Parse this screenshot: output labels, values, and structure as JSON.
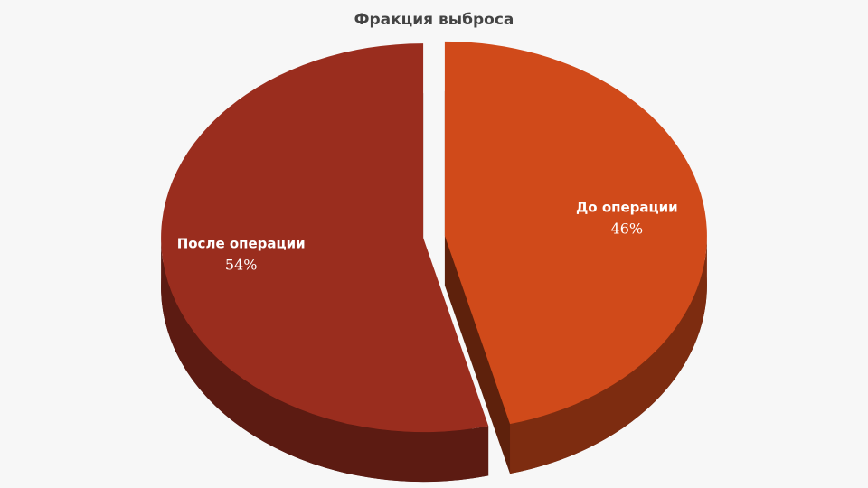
{
  "chart_data": {
    "type": "pie",
    "title": "Фракция выброса",
    "categories": [
      "До операции",
      "После операции"
    ],
    "values": [
      46,
      54
    ],
    "value_labels": [
      "46%",
      "54%"
    ],
    "colors": [
      "#d04a1a",
      "#9a2d1e"
    ]
  }
}
